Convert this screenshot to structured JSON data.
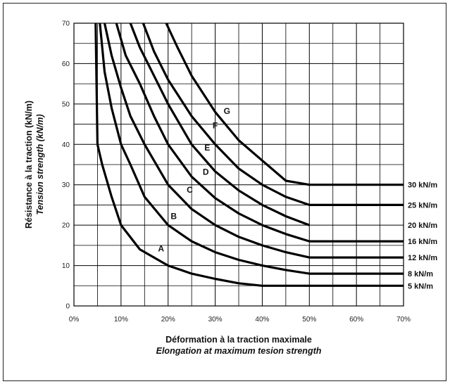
{
  "chart_data": {
    "type": "line",
    "xlabel": "Déformation à la traction maximale",
    "xlabel_en": "Elongation at maximum tesion strength",
    "ylabel": "Résistance à la traction (kN/m)",
    "ylabel_en": "Tension strength (kN/m)",
    "xlim": [
      0,
      70
    ],
    "ylim": [
      0,
      70
    ],
    "x_ticks": [
      0,
      10,
      20,
      30,
      40,
      50,
      60,
      70
    ],
    "x_tick_labels": [
      "0%",
      "10%",
      "20%",
      "30%",
      "40%",
      "50%",
      "60%",
      "70%"
    ],
    "y_ticks": [
      0,
      10,
      20,
      30,
      40,
      50,
      60,
      70
    ],
    "y_tick_labels": [
      "0",
      "10",
      "20",
      "30",
      "40",
      "50",
      "60",
      "70"
    ],
    "grid": true,
    "series": [
      {
        "name": "A",
        "end_label": "5 kN/m",
        "points": [
          [
            4.6,
            70
          ],
          [
            4.8,
            55
          ],
          [
            5,
            40
          ],
          [
            6,
            35
          ],
          [
            8,
            27
          ],
          [
            10,
            20
          ],
          [
            14,
            14
          ],
          [
            20,
            10
          ],
          [
            25,
            8
          ],
          [
            30,
            6.7
          ],
          [
            35,
            5.6
          ],
          [
            40,
            5
          ],
          [
            70,
            5
          ]
        ]
      },
      {
        "name": "B",
        "end_label": "8 kN/m",
        "points": [
          [
            5.5,
            70
          ],
          [
            6.5,
            58
          ],
          [
            8,
            49
          ],
          [
            10,
            40
          ],
          [
            12,
            35
          ],
          [
            15,
            27
          ],
          [
            20,
            20
          ],
          [
            25,
            16
          ],
          [
            30,
            13.3
          ],
          [
            35,
            11.4
          ],
          [
            40,
            10
          ],
          [
            45,
            8.9
          ],
          [
            50,
            8
          ],
          [
            70,
            8
          ]
        ]
      },
      {
        "name": "C",
        "end_label": "12 kN/m",
        "points": [
          [
            6.5,
            70
          ],
          [
            8,
            62
          ],
          [
            10,
            54
          ],
          [
            12,
            47
          ],
          [
            15,
            40
          ],
          [
            20,
            30
          ],
          [
            25,
            24
          ],
          [
            30,
            20
          ],
          [
            35,
            17.1
          ],
          [
            40,
            15
          ],
          [
            45,
            13.3
          ],
          [
            50,
            12
          ],
          [
            70,
            12
          ]
        ]
      },
      {
        "name": "D",
        "end_label": "16 kN/m",
        "points": [
          [
            9,
            70
          ],
          [
            11,
            62
          ],
          [
            14,
            55
          ],
          [
            17,
            47
          ],
          [
            20,
            40
          ],
          [
            25,
            32
          ],
          [
            30,
            26.7
          ],
          [
            35,
            22.9
          ],
          [
            40,
            20
          ],
          [
            45,
            17.8
          ],
          [
            50,
            16
          ],
          [
            70,
            16
          ]
        ]
      },
      {
        "name": "E",
        "end_label": "20 kN/m",
        "points": [
          [
            12,
            70
          ],
          [
            14,
            64
          ],
          [
            17,
            57
          ],
          [
            20,
            50
          ],
          [
            25,
            40
          ],
          [
            30,
            33.3
          ],
          [
            35,
            28.6
          ],
          [
            40,
            25
          ],
          [
            45,
            22.2
          ],
          [
            50,
            20
          ]
        ]
      },
      {
        "name": "F",
        "end_label": "25 kN/m",
        "points": [
          [
            14.7,
            70
          ],
          [
            17,
            63
          ],
          [
            20,
            56
          ],
          [
            25,
            47
          ],
          [
            30,
            40
          ],
          [
            35,
            34
          ],
          [
            40,
            30
          ],
          [
            45,
            27
          ],
          [
            50,
            25
          ],
          [
            70,
            25
          ]
        ]
      },
      {
        "name": "G",
        "end_label": "30 kN/m",
        "points": [
          [
            19.6,
            70
          ],
          [
            22,
            64
          ],
          [
            25,
            57
          ],
          [
            30,
            48
          ],
          [
            35,
            41
          ],
          [
            40,
            36
          ],
          [
            45,
            31
          ],
          [
            50,
            30
          ],
          [
            70,
            30
          ]
        ]
      }
    ],
    "curve_labels": [
      {
        "text": "A",
        "x": 18.5,
        "y": 13.5
      },
      {
        "text": "B",
        "x": 21.2,
        "y": 21.5
      },
      {
        "text": "C",
        "x": 24.6,
        "y": 28
      },
      {
        "text": "D",
        "x": 28,
        "y": 32.5
      },
      {
        "text": "E",
        "x": 28.3,
        "y": 38.5
      },
      {
        "text": "F",
        "x": 30,
        "y": 44
      },
      {
        "text": "G",
        "x": 32.5,
        "y": 47.5
      }
    ],
    "colors": {
      "line": "#000000",
      "grid": "#000000",
      "background": "#ffffff"
    }
  }
}
